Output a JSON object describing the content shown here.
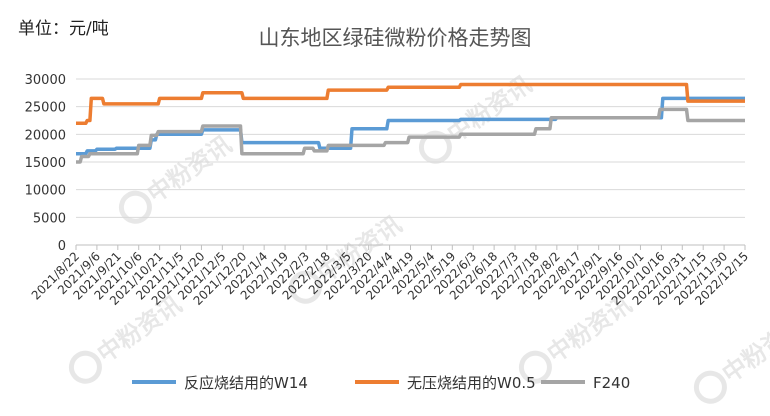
{
  "chart_data": {
    "type": "line",
    "unit_label": "单位：元/吨",
    "title": "山东地区绿硅微粉价格走势图",
    "ylim": [
      0,
      30000
    ],
    "y_ticks": [
      "0",
      "5000",
      "10000",
      "15000",
      "20000",
      "25000",
      "30000"
    ],
    "x_ticks": [
      "2021/8/22",
      "2021/9/6",
      "2021/9/21",
      "2021/10/6",
      "2021/10/21",
      "2021/11/5",
      "2021/11/20",
      "2021/12/5",
      "2021/12/20",
      "2022/1/4",
      "2022/1/19",
      "2022/2/3",
      "2022/2/18",
      "2022/3/5",
      "2022/3/20",
      "2022/4/4",
      "2022/4/19",
      "2022/5/4",
      "2022/5/19",
      "2022/6/3",
      "2022/6/18",
      "2022/7/3",
      "2022/7/18",
      "2022/8/2",
      "2022/8/17",
      "2022/9/1",
      "2022/9/16",
      "2022/10/1",
      "2022/10/16",
      "2022/10/31",
      "2022/11/15",
      "2022/11/30",
      "2022/12/15"
    ],
    "grid": true,
    "legend_position": "bottom",
    "watermark_text": "中粉资讯",
    "series": [
      {
        "name": "反应烧结用的W14",
        "color": "#5b9bd5",
        "points": [
          [
            "2021/8/22",
            16500
          ],
          [
            "2021/8/29",
            16500
          ],
          [
            "2021/8/30",
            17000
          ],
          [
            "2021/9/5",
            17000
          ],
          [
            "2021/9/6",
            17300
          ],
          [
            "2021/9/19",
            17300
          ],
          [
            "2021/9/20",
            17500
          ],
          [
            "2021/10/14",
            17500
          ],
          [
            "2021/10/15",
            19000
          ],
          [
            "2021/10/18",
            19000
          ],
          [
            "2021/10/19",
            20000
          ],
          [
            "2021/11/20",
            20000
          ],
          [
            "2021/11/21",
            20800
          ],
          [
            "2021/12/18",
            20800
          ],
          [
            "2021/12/19",
            18500
          ],
          [
            "2022/2/12",
            18500
          ],
          [
            "2022/2/13",
            17500
          ],
          [
            "2022/3/7",
            17500
          ],
          [
            "2022/3/8",
            21000
          ],
          [
            "2022/4/2",
            21000
          ],
          [
            "2022/4/3",
            22500
          ],
          [
            "2022/5/24",
            22500
          ],
          [
            "2022/5/25",
            22700
          ],
          [
            "2022/8/1",
            22700
          ],
          [
            "2022/8/2",
            23000
          ],
          [
            "2022/10/16",
            23000
          ],
          [
            "2022/10/17",
            26500
          ],
          [
            "2022/12/15",
            26500
          ]
        ]
      },
      {
        "name": "无压烧结用的W0.5",
        "color": "#ed7d31",
        "points": [
          [
            "2021/8/22",
            22000
          ],
          [
            "2021/8/29",
            22000
          ],
          [
            "2021/8/30",
            22500
          ],
          [
            "2021/9/1",
            22500
          ],
          [
            "2021/9/2",
            26500
          ],
          [
            "2021/9/10",
            26500
          ],
          [
            "2021/9/11",
            25500
          ],
          [
            "2021/10/20",
            25500
          ],
          [
            "2021/10/21",
            26500
          ],
          [
            "2021/11/20",
            26500
          ],
          [
            "2021/11/21",
            27500
          ],
          [
            "2021/12/19",
            27500
          ],
          [
            "2021/12/20",
            26500
          ],
          [
            "2022/2/18",
            26500
          ],
          [
            "2022/2/19",
            28000
          ],
          [
            "2022/4/2",
            28000
          ],
          [
            "2022/4/3",
            28500
          ],
          [
            "2022/5/24",
            28500
          ],
          [
            "2022/5/25",
            29000
          ],
          [
            "2022/11/3",
            29000
          ],
          [
            "2022/11/4",
            26000
          ],
          [
            "2022/12/15",
            26000
          ]
        ]
      },
      {
        "name": "F240",
        "color": "#a5a5a5",
        "points": [
          [
            "2021/8/22",
            15000
          ],
          [
            "2021/8/25",
            15000
          ],
          [
            "2021/8/26",
            16000
          ],
          [
            "2021/8/31",
            16000
          ],
          [
            "2021/9/1",
            16500
          ],
          [
            "2021/10/5",
            16500
          ],
          [
            "2021/10/6",
            18000
          ],
          [
            "2021/10/14",
            18000
          ],
          [
            "2021/10/15",
            19800
          ],
          [
            "2021/10/19",
            19800
          ],
          [
            "2021/10/20",
            20500
          ],
          [
            "2021/11/20",
            20500
          ],
          [
            "2021/11/21",
            21500
          ],
          [
            "2021/12/18",
            21500
          ],
          [
            "2021/12/19",
            16500
          ],
          [
            "2022/2/1",
            16500
          ],
          [
            "2022/2/2",
            17500
          ],
          [
            "2022/2/8",
            17500
          ],
          [
            "2022/2/9",
            17000
          ],
          [
            "2022/2/18",
            17000
          ],
          [
            "2022/2/19",
            18000
          ],
          [
            "2022/3/31",
            18000
          ],
          [
            "2022/4/1",
            18500
          ],
          [
            "2022/4/17",
            18500
          ],
          [
            "2022/4/18",
            19500
          ],
          [
            "2022/5/24",
            19500
          ],
          [
            "2022/5/25",
            20000
          ],
          [
            "2022/7/17",
            20000
          ],
          [
            "2022/7/18",
            21000
          ],
          [
            "2022/7/28",
            21000
          ],
          [
            "2022/7/29",
            23000
          ],
          [
            "2022/10/14",
            23000
          ],
          [
            "2022/10/15",
            24500
          ],
          [
            "2022/11/3",
            24500
          ],
          [
            "2022/11/4",
            22500
          ],
          [
            "2022/12/15",
            22500
          ]
        ]
      }
    ]
  }
}
